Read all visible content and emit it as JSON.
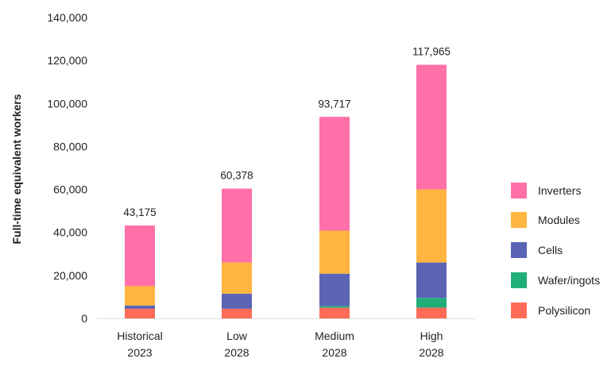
{
  "chart_data": {
    "type": "bar",
    "stacked": true,
    "ylabel": "Full-time equivalent workers",
    "ylim": [
      0,
      140000
    ],
    "yticks": [
      0,
      20000,
      40000,
      60000,
      80000,
      100000,
      120000,
      140000
    ],
    "ytick_labels": [
      "0",
      "20,000",
      "40,000",
      "60,000",
      "80,000",
      "100,000",
      "120,000",
      "140,000"
    ],
    "grid": false,
    "legend_position": "right",
    "categories": [
      {
        "line1": "Historical",
        "line2": "2023"
      },
      {
        "line1": "Low",
        "line2": "2028"
      },
      {
        "line1": "Medium",
        "line2": "2028"
      },
      {
        "line1": "High",
        "line2": "2028"
      }
    ],
    "totals": [
      43175,
      60378,
      93717,
      117965
    ],
    "total_labels": [
      "43,175",
      "60,378",
      "93,717",
      "117,965"
    ],
    "series": [
      {
        "name": "Polysilicon",
        "color": "#FF6B57",
        "values": [
          4500,
          4500,
          5000,
          5000
        ]
      },
      {
        "name": "Wafer/ingots",
        "color": "#1FAE7A",
        "values": [
          0,
          0,
          800,
          4500
        ]
      },
      {
        "name": "Cells",
        "color": "#5B63B5",
        "values": [
          1500,
          7000,
          15000,
          16500
        ]
      },
      {
        "name": "Modules",
        "color": "#FFB53F",
        "values": [
          9000,
          14500,
          20000,
          34000
        ]
      },
      {
        "name": "Inverters",
        "color": "#FF6FA8",
        "values": [
          28175,
          34378,
          52917,
          57965
        ]
      }
    ],
    "legend_order": [
      "Inverters",
      "Modules",
      "Cells",
      "Wafer/ingots",
      "Polysilicon"
    ]
  }
}
